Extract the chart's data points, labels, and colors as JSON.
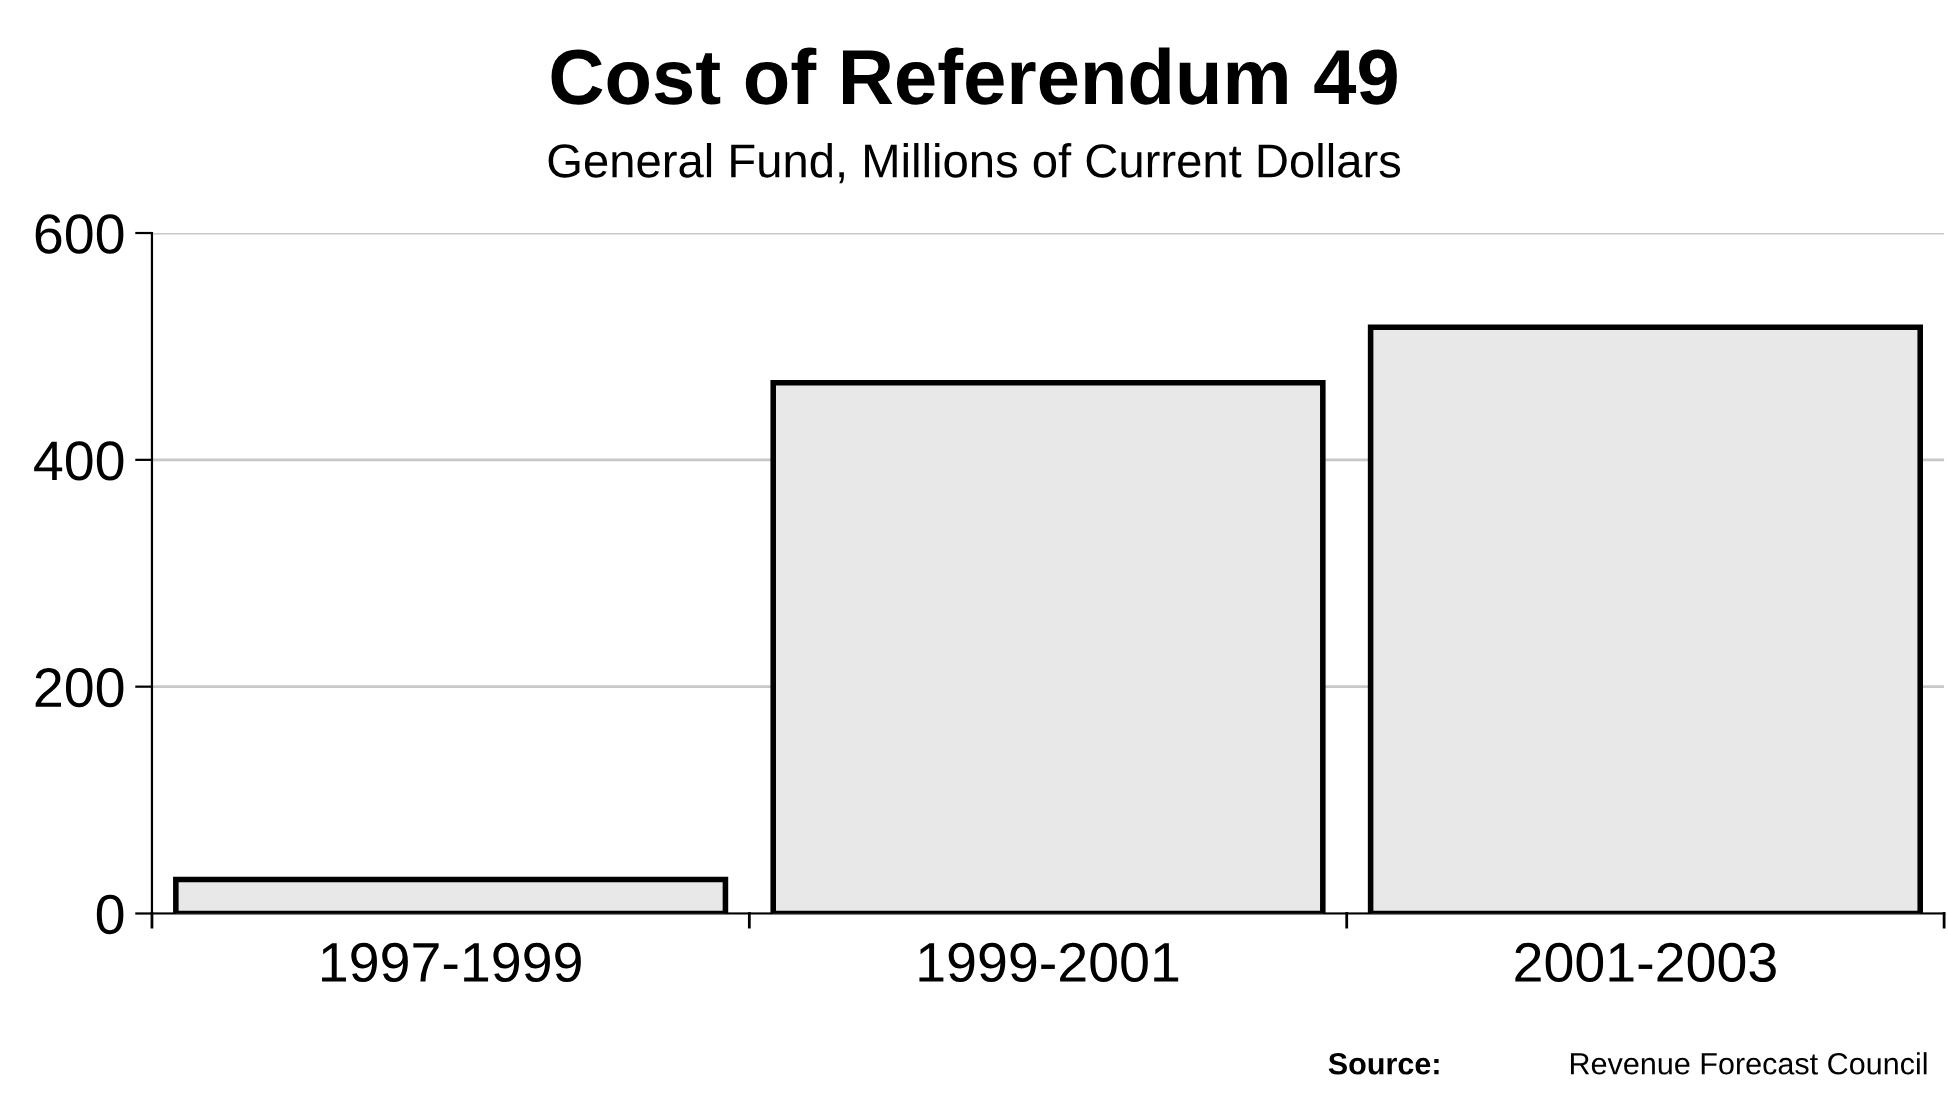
{
  "chart_data": {
    "type": "bar",
    "title": "Cost of Referendum 49",
    "subtitle": "General Fund, Millions of Current Dollars",
    "categories": [
      "1997-1999",
      "1999-2001",
      "2001-2003"
    ],
    "values": [
      30,
      468,
      517
    ],
    "color": "#e8e8e8",
    "ylim": [
      0,
      600
    ],
    "yticks": [
      0,
      200,
      400,
      600
    ],
    "grid": "y",
    "annotations": [
      "Source:",
      "Revenue Forecast Council"
    ]
  }
}
